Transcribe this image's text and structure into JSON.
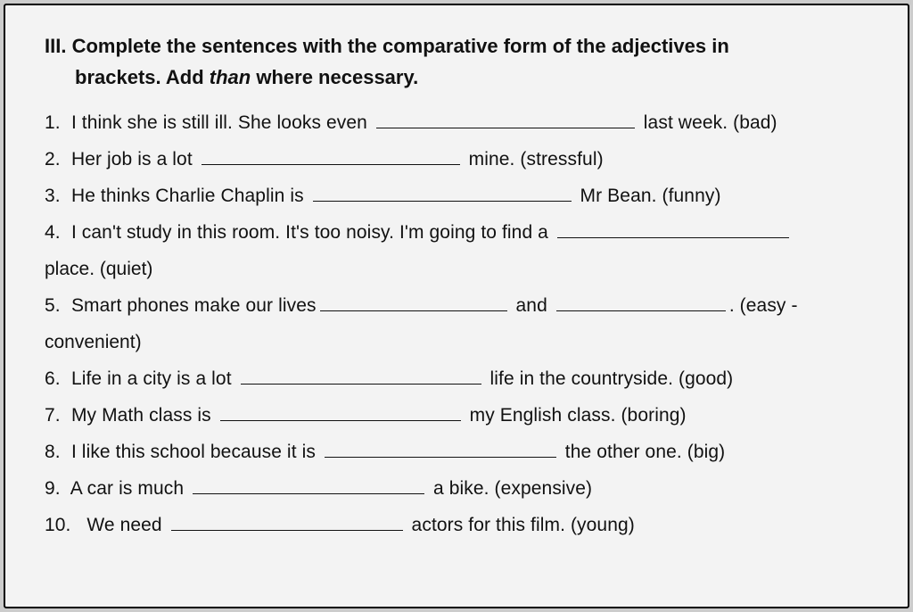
{
  "heading": {
    "number": "III.",
    "line1": "Complete the sentences with the comparative form of the adjectives in",
    "line2a": "brackets. Add ",
    "italic": "than",
    "line2b": " where necessary."
  },
  "q1": {
    "num": "1.",
    "a": "I think she is still ill. She looks even ",
    "b": " last week. (bad)"
  },
  "q2": {
    "num": "2.",
    "a": "Her job is a lot ",
    "b": " mine. (stressful)"
  },
  "q3": {
    "num": "3.",
    "a": "He thinks Charlie Chaplin is ",
    "b": " Mr Bean. (funny)"
  },
  "q4": {
    "num": "4.",
    "a": "I can't study in this room. It's too noisy. I'm going to find a ",
    "cont": "place. (quiet)"
  },
  "q5": {
    "num": "5.",
    "a": "Smart phones make our lives",
    "mid": " and ",
    "b": ". (easy -",
    "cont": "convenient)"
  },
  "q6": {
    "num": "6.",
    "a": "Life in a city is a lot ",
    "b": " life in the countryside. (good)"
  },
  "q7": {
    "num": "7.",
    "a": "My Math class is ",
    "b": " my English class. (boring)"
  },
  "q8": {
    "num": "8.",
    "a": "I like this school because it is ",
    "b": " the other one. (big)"
  },
  "q9": {
    "num": "9.",
    "a": "A car is much ",
    "b": " a bike. (expensive)"
  },
  "q10": {
    "num": "10.",
    "sp": "  ",
    "a": "We need ",
    "b": " actors for this film. (young)"
  }
}
